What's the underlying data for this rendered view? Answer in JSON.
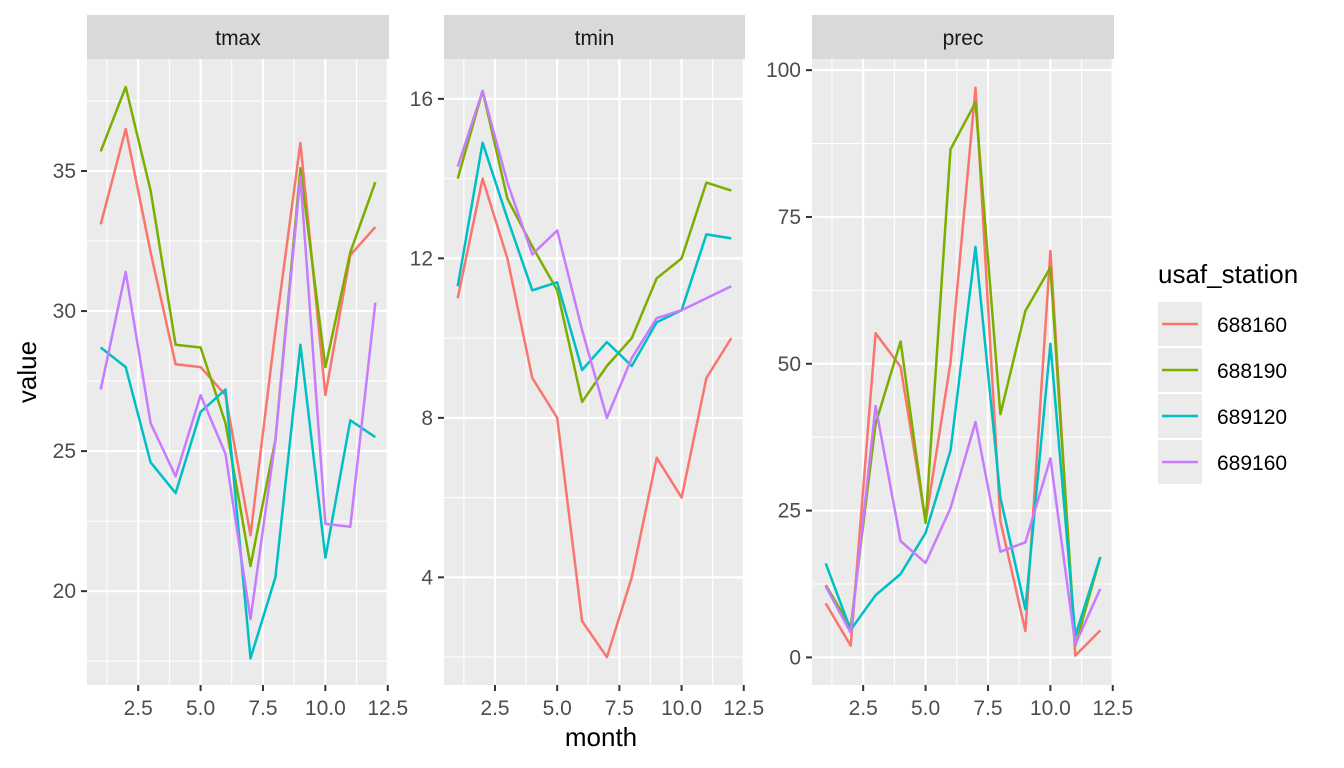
{
  "chart_data": {
    "type": "line",
    "xlabel": "month",
    "ylabel": "value",
    "x": [
      1,
      2,
      3,
      4,
      5,
      6,
      7,
      8,
      9,
      10,
      11,
      12
    ],
    "legend": {
      "title": "usaf_station",
      "position": "right"
    },
    "colors": {
      "688160": "#F8766D",
      "688190": "#7CAE00",
      "689120": "#00BFC4",
      "689160": "#C77CFF"
    },
    "grid": true,
    "panels": [
      {
        "title": "tmax",
        "xlim": [
          0.45,
          12.55
        ],
        "ylim": [
          16.65,
          39.0
        ],
        "xticks": [
          2.5,
          5.0,
          7.5,
          10.0,
          12.5
        ],
        "xtick_labels": [
          "2.5",
          "5.0",
          "7.5",
          "10.0",
          "12.5"
        ],
        "yticks": [
          20,
          25,
          30,
          35
        ],
        "ytick_labels": [
          "20",
          "25",
          "30",
          "35"
        ],
        "series": [
          {
            "name": "688160",
            "values": [
              33.1,
              36.5,
              32.1,
              28.1,
              28.0,
              27.0,
              22.0,
              29.3,
              36.0,
              27.0,
              32.0,
              33.0
            ]
          },
          {
            "name": "688190",
            "values": [
              35.7,
              38.0,
              34.3,
              28.8,
              28.7,
              26.0,
              20.9,
              25.4,
              35.1,
              28.0,
              32.1,
              34.6
            ]
          },
          {
            "name": "689120",
            "values": [
              28.7,
              28.0,
              24.6,
              23.5,
              26.4,
              27.2,
              17.6,
              20.5,
              28.8,
              21.2,
              26.1,
              25.5
            ]
          },
          {
            "name": "689160",
            "values": [
              27.2,
              31.4,
              26.0,
              24.1,
              27.0,
              24.9,
              19.0,
              25.4,
              34.8,
              22.4,
              22.3,
              30.3
            ]
          }
        ]
      },
      {
        "title": "tmin",
        "xlim": [
          0.45,
          12.55
        ],
        "ylim": [
          1.3,
          17.0
        ],
        "xticks": [
          2.5,
          5.0,
          7.5,
          10.0,
          12.5
        ],
        "xtick_labels": [
          "2.5",
          "5.0",
          "7.5",
          "10.0",
          "12.5"
        ],
        "yticks": [
          4,
          8,
          12,
          16
        ],
        "ytick_labels": [
          "4",
          "8",
          "12",
          "16"
        ],
        "series": [
          {
            "name": "688160",
            "values": [
              11.0,
              14.0,
              12.0,
              9.0,
              8.0,
              2.9,
              2.0,
              4.0,
              7.0,
              6.0,
              9.0,
              10.0
            ]
          },
          {
            "name": "688190",
            "values": [
              14.0,
              16.2,
              13.5,
              12.3,
              11.2,
              8.4,
              9.3,
              10.0,
              11.5,
              12.0,
              13.9,
              13.7
            ]
          },
          {
            "name": "689120",
            "values": [
              11.3,
              14.9,
              13.0,
              11.2,
              11.4,
              9.2,
              9.9,
              9.3,
              10.4,
              10.7,
              12.6,
              12.5
            ]
          },
          {
            "name": "689160",
            "values": [
              14.3,
              16.2,
              13.9,
              12.1,
              12.7,
              10.2,
              8.0,
              9.5,
              10.5,
              10.7,
              11.0,
              11.3
            ]
          }
        ]
      },
      {
        "title": "prec",
        "xlim": [
          0.45,
          12.55
        ],
        "ylim": [
          -4.7,
          101.9
        ],
        "xticks": [
          2.5,
          5.0,
          7.5,
          10.0,
          12.5
        ],
        "xtick_labels": [
          "2.5",
          "5.0",
          "7.5",
          "10.0",
          "12.5"
        ],
        "yticks": [
          0,
          25,
          50,
          75,
          100
        ],
        "ytick_labels": [
          "0",
          "25",
          "50",
          "75",
          "100"
        ],
        "series": [
          {
            "name": "688160",
            "values": [
              9.2,
              2.0,
              55.2,
              49.5,
              23.1,
              50.2,
              97.0,
              23.2,
              4.5,
              69.2,
              0.3,
              4.6
            ]
          },
          {
            "name": "688190",
            "values": [
              12.3,
              5.2,
              39.8,
              53.8,
              22.9,
              86.5,
              94.5,
              41.4,
              59.0,
              66.4,
              2.0,
              17.1
            ]
          },
          {
            "name": "689120",
            "values": [
              16.0,
              4.7,
              10.6,
              14.2,
              21.2,
              35.2,
              69.9,
              27.2,
              8.2,
              53.4,
              3.7,
              17.1
            ]
          },
          {
            "name": "689160",
            "values": [
              12.1,
              4.2,
              42.8,
              19.8,
              16.1,
              25.4,
              40.1,
              18.0,
              19.6,
              33.9,
              2.2,
              11.7
            ]
          }
        ]
      }
    ]
  }
}
